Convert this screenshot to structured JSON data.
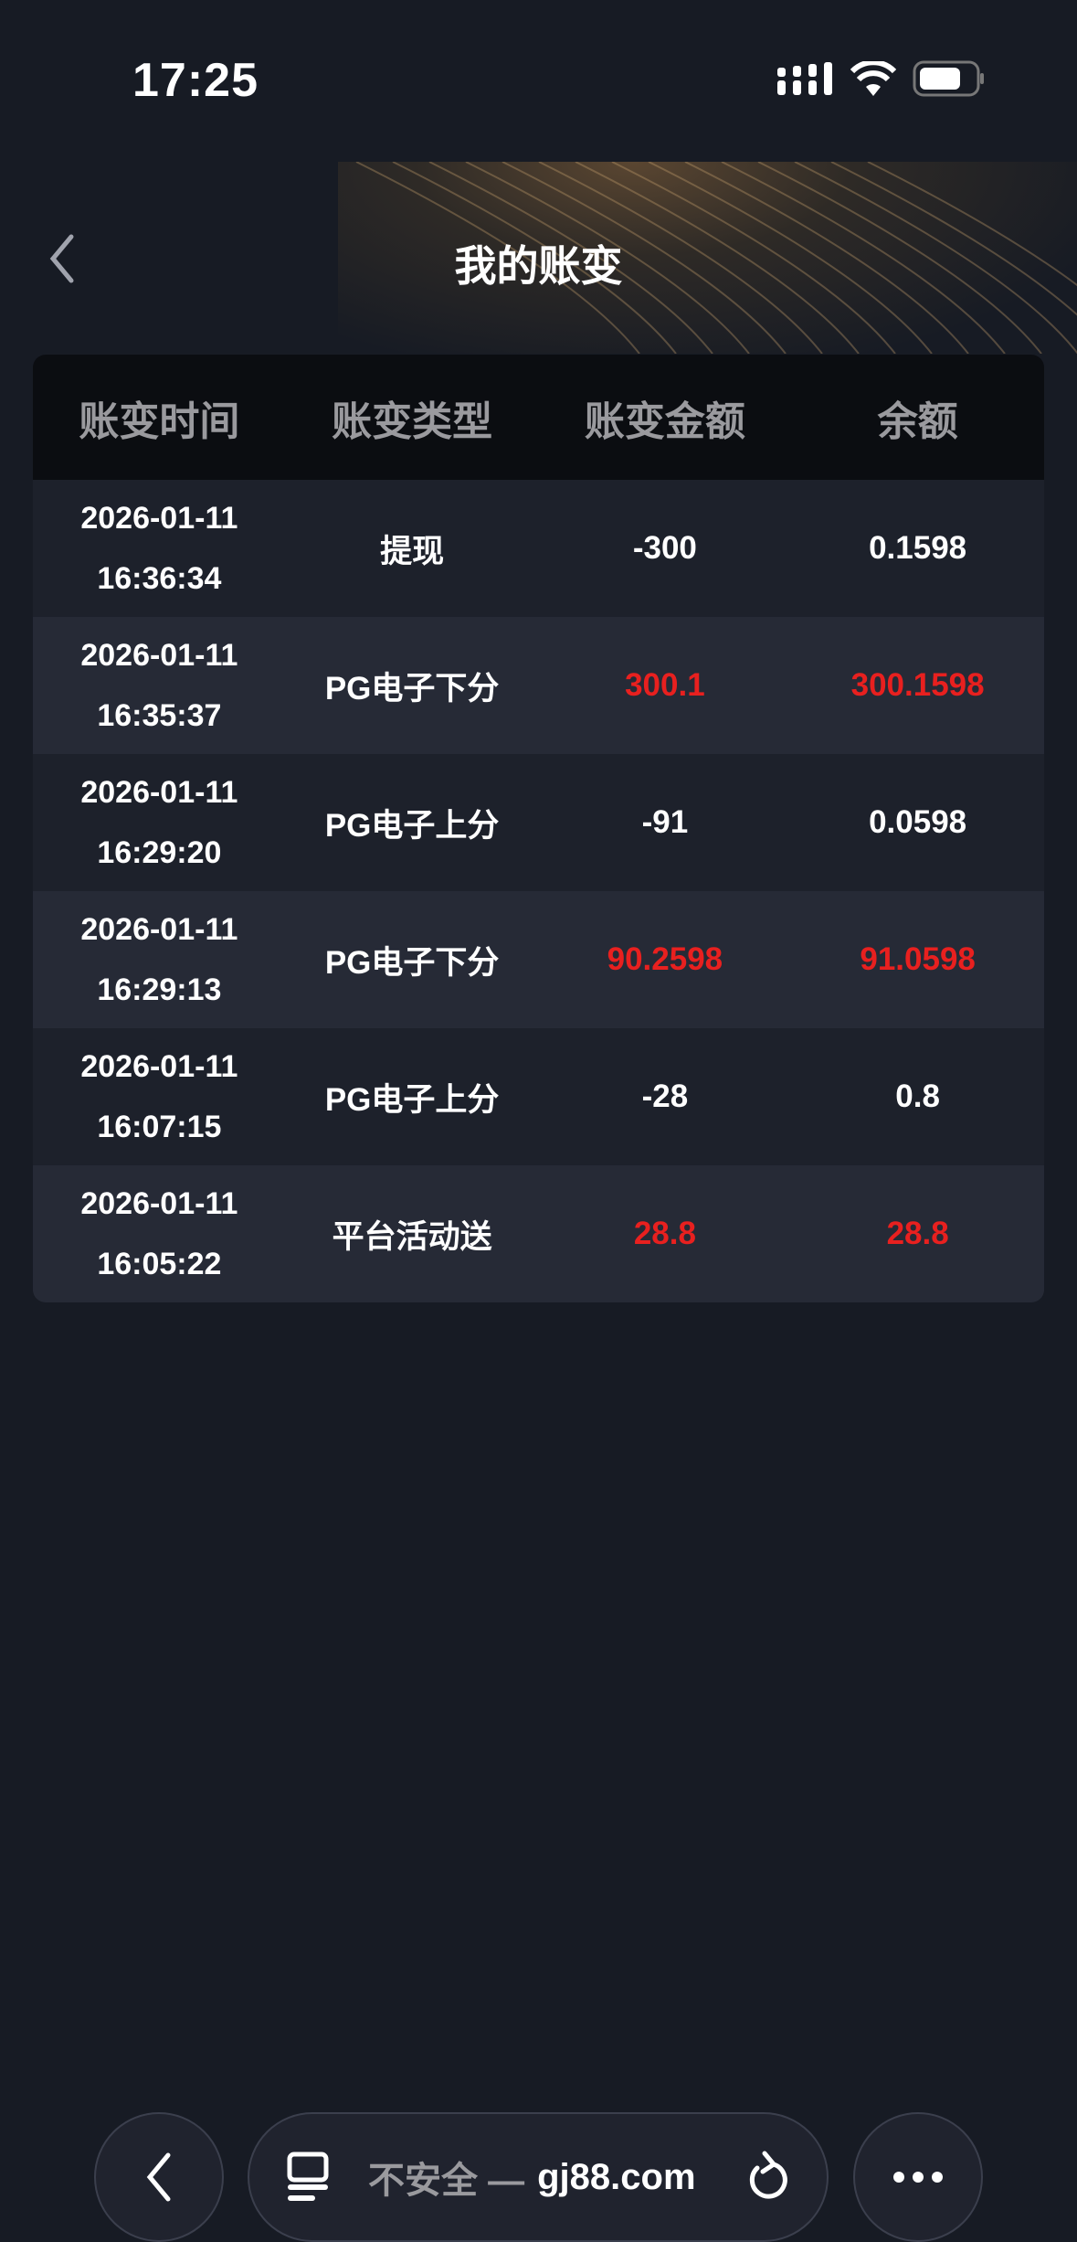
{
  "status_bar": {
    "time": "17:25"
  },
  "header": {
    "title": "我的账变"
  },
  "table": {
    "columns": [
      "账变时间",
      "账变类型",
      "账变金额",
      "余额"
    ],
    "rows": [
      {
        "date": "2026-01-11",
        "time": "16:36:34",
        "type": "提现",
        "amount": "-300",
        "balance": "0.1598",
        "positive": false
      },
      {
        "date": "2026-01-11",
        "time": "16:35:37",
        "type": "PG电子下分",
        "amount": "300.1",
        "balance": "300.1598",
        "positive": true
      },
      {
        "date": "2026-01-11",
        "time": "16:29:20",
        "type": "PG电子上分",
        "amount": "-91",
        "balance": "0.0598",
        "positive": false
      },
      {
        "date": "2026-01-11",
        "time": "16:29:13",
        "type": "PG电子下分",
        "amount": "90.2598",
        "balance": "91.0598",
        "positive": true
      },
      {
        "date": "2026-01-11",
        "time": "16:07:15",
        "type": "PG电子上分",
        "amount": "-28",
        "balance": "0.8",
        "positive": false
      },
      {
        "date": "2026-01-11",
        "time": "16:05:22",
        "type": "平台活动送",
        "amount": "28.8",
        "balance": "28.8",
        "positive": true
      }
    ]
  },
  "browser": {
    "security_label": "不安全 —",
    "host": "gj88.com"
  },
  "colors": {
    "positive": "#e8201f",
    "background": "#171b24"
  }
}
